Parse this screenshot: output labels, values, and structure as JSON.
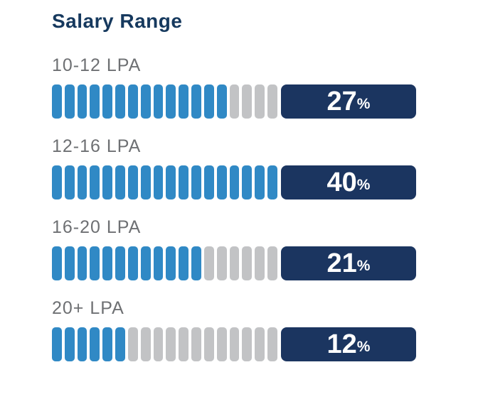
{
  "chart_data": {
    "type": "bar",
    "title": "Salary Range",
    "unit": "%",
    "segments_per_row": 18,
    "categories": [
      "10-12 LPA",
      "12-16 LPA",
      "16-20 LPA",
      "20+ LPA"
    ],
    "values": [
      27,
      40,
      21,
      12
    ],
    "rows": [
      {
        "label": "10-12 LPA",
        "value": 27,
        "filled_segments": 14
      },
      {
        "label": "12-16 LPA",
        "value": 40,
        "filled_segments": 18
      },
      {
        "label": "16-20 LPA",
        "value": 21,
        "filled_segments": 12
      },
      {
        "label": "20+ LPA",
        "value": 12,
        "filled_segments": 6
      }
    ],
    "colors": {
      "segment_filled": "#3089c5",
      "segment_empty": "#c2c3c5",
      "badge_background": "#1b3560",
      "badge_text": "#ffffff",
      "title_text": "#16395e",
      "label_text": "#6e7073",
      "background": "#ffffff"
    },
    "legend": null,
    "grid": false
  }
}
